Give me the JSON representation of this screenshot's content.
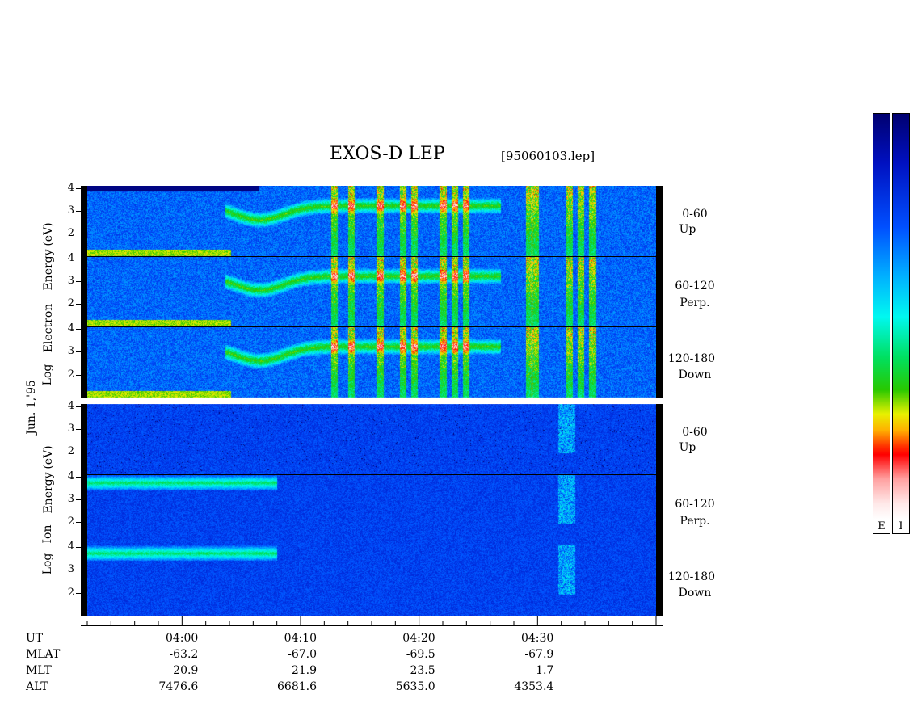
{
  "header": {
    "title": "EXOS-D LEP",
    "file": "[95060103.lep]"
  },
  "date_label": "Jun. 1,'95",
  "electron_group": {
    "labels": [
      "Log",
      "Electron",
      "Energy",
      "(eV)"
    ]
  },
  "ion_group": {
    "labels": [
      "Log",
      "Ion",
      "Energy",
      "(eV)"
    ]
  },
  "channels": [
    {
      "range": "0-60",
      "dir": "Up"
    },
    {
      "range": "60-120",
      "dir": "Perp."
    },
    {
      "range": "120-180",
      "dir": "Down"
    },
    {
      "range": "0-60",
      "dir": "Up"
    },
    {
      "range": "60-120",
      "dir": "Perp."
    },
    {
      "range": "120-180",
      "dir": "Down"
    }
  ],
  "y_ticks": [
    "4",
    "3",
    "2"
  ],
  "colorbar": {
    "labels": [
      "E",
      "I"
    ]
  },
  "footer": {
    "row_labels": [
      "UT",
      "MLAT",
      "MLT",
      "ALT"
    ],
    "columns": [
      {
        "UT": "04:00",
        "MLAT": "-63.2",
        "MLT": "20.9",
        "ALT": "7476.6"
      },
      {
        "UT": "04:10",
        "MLAT": "-67.0",
        "MLT": "21.9",
        "ALT": "6681.6"
      },
      {
        "UT": "04:20",
        "MLAT": "-69.5",
        "MLT": "23.5",
        "ALT": "5635.0"
      },
      {
        "UT": "04:30",
        "MLAT": "-67.9",
        "MLT": "1.7",
        "ALT": "4353.4"
      }
    ]
  },
  "chart_data": {
    "type": "heatmap",
    "title": "EXOS-D LEP",
    "subtitle": "[95060103.lep]",
    "x_axis": {
      "quantity": "UT",
      "tick_labels": [
        "04:00",
        "04:10",
        "04:20",
        "04:30"
      ],
      "minor_tick_interval_min": 2,
      "range": [
        "03:52",
        "04:40"
      ]
    },
    "y_axis": {
      "scale": "log10 energy",
      "tick_labels": [
        "2",
        "3",
        "4"
      ],
      "range": [
        1,
        4.1
      ]
    },
    "panels": [
      {
        "species": "Electron",
        "pitch": "0-60",
        "dir": "Up"
      },
      {
        "species": "Electron",
        "pitch": "60-120",
        "dir": "Perp."
      },
      {
        "species": "Electron",
        "pitch": "120-180",
        "dir": "Down"
      },
      {
        "species": "Ion",
        "pitch": "0-60",
        "dir": "Up"
      },
      {
        "species": "Ion",
        "pitch": "60-120",
        "dir": "Perp."
      },
      {
        "species": "Ion",
        "pitch": "120-180",
        "dir": "Down"
      }
    ],
    "colormap": [
      "#000070",
      "#0010c0",
      "#0050ff",
      "#00b0ff",
      "#00f8f0",
      "#00e060",
      "#28c800",
      "#e8f000",
      "#ffb000",
      "#ff0000",
      "#ffa0a0",
      "#ffffff"
    ],
    "grid": false,
    "legend": "colorbars-right"
  }
}
